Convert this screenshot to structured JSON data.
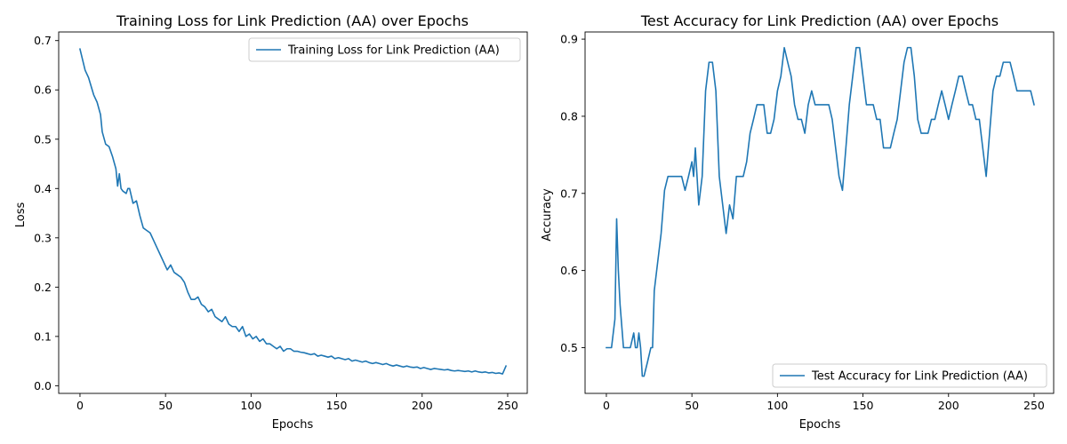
{
  "colors": {
    "series": "#1f77b4",
    "axes": "#000000",
    "background": "#ffffff",
    "legend_border": "#cccccc"
  },
  "chart_data": [
    {
      "type": "line",
      "title": "Training Loss for Link Prediction (AA) over Epochs",
      "xlabel": "Epochs",
      "ylabel": "Loss",
      "xlim": [
        -12.45,
        261.45
      ],
      "ylim": [
        -0.0155,
        0.7175
      ],
      "xticks": [
        0,
        50,
        100,
        150,
        200,
        250
      ],
      "yticks": [
        0.0,
        0.1,
        0.2,
        0.3,
        0.4,
        0.5,
        0.6,
        0.7
      ],
      "xtick_labels": [
        "0",
        "50",
        "100",
        "150",
        "200",
        "250"
      ],
      "ytick_labels": [
        "0.0",
        "0.1",
        "0.2",
        "0.3",
        "0.4",
        "0.5",
        "0.6",
        "0.7"
      ],
      "grid": false,
      "legend_position": "top-right",
      "series": [
        {
          "name": "Training Loss for Link Prediction (AA)",
          "x": [
            0,
            3,
            5,
            8,
            10,
            12,
            13,
            15,
            17,
            19,
            21,
            22,
            23,
            24,
            25,
            27,
            28,
            29,
            31,
            33,
            35,
            37,
            39,
            41,
            43,
            45,
            47,
            49,
            51,
            53,
            55,
            57,
            59,
            61,
            63,
            65,
            67,
            69,
            71,
            73,
            75,
            77,
            79,
            81,
            83,
            85,
            87,
            89,
            91,
            93,
            95,
            97,
            99,
            101,
            103,
            105,
            107,
            109,
            111,
            113,
            115,
            117,
            119,
            121,
            123,
            125,
            127,
            129,
            131,
            133,
            135,
            137,
            139,
            141,
            143,
            145,
            147,
            149,
            151,
            153,
            155,
            157,
            159,
            161,
            163,
            165,
            167,
            169,
            171,
            173,
            175,
            177,
            179,
            181,
            183,
            185,
            187,
            189,
            191,
            193,
            195,
            197,
            199,
            201,
            203,
            205,
            207,
            209,
            211,
            213,
            215,
            217,
            219,
            221,
            223,
            225,
            227,
            229,
            231,
            233,
            235,
            237,
            239,
            241,
            243,
            245,
            247,
            249
          ],
          "y": [
            0.683,
            0.64,
            0.625,
            0.59,
            0.575,
            0.55,
            0.515,
            0.49,
            0.485,
            0.465,
            0.44,
            0.405,
            0.43,
            0.4,
            0.395,
            0.39,
            0.4,
            0.4,
            0.37,
            0.375,
            0.345,
            0.32,
            0.315,
            0.31,
            0.295,
            0.28,
            0.265,
            0.25,
            0.235,
            0.245,
            0.23,
            0.225,
            0.22,
            0.21,
            0.19,
            0.175,
            0.175,
            0.18,
            0.165,
            0.16,
            0.15,
            0.155,
            0.14,
            0.135,
            0.13,
            0.14,
            0.125,
            0.12,
            0.12,
            0.11,
            0.12,
            0.1,
            0.105,
            0.095,
            0.1,
            0.09,
            0.095,
            0.085,
            0.085,
            0.08,
            0.075,
            0.08,
            0.07,
            0.075,
            0.075,
            0.07,
            0.07,
            0.068,
            0.067,
            0.065,
            0.063,
            0.065,
            0.06,
            0.062,
            0.06,
            0.058,
            0.06,
            0.055,
            0.057,
            0.055,
            0.053,
            0.055,
            0.05,
            0.052,
            0.05,
            0.048,
            0.05,
            0.047,
            0.045,
            0.047,
            0.045,
            0.043,
            0.045,
            0.042,
            0.04,
            0.042,
            0.04,
            0.038,
            0.04,
            0.038,
            0.037,
            0.038,
            0.035,
            0.037,
            0.035,
            0.033,
            0.035,
            0.034,
            0.033,
            0.032,
            0.033,
            0.031,
            0.03,
            0.031,
            0.03,
            0.029,
            0.03,
            0.028,
            0.03,
            0.028,
            0.027,
            0.028,
            0.026,
            0.027,
            0.025,
            0.026,
            0.024,
            0.04
          ]
        }
      ]
    },
    {
      "type": "line",
      "title": "Test Accuracy for Link Prediction (AA) over Epochs",
      "xlabel": "Epochs",
      "ylabel": "Accuracy",
      "xlim": [
        -12.45,
        261.45
      ],
      "ylim": [
        0.4407,
        0.9093
      ],
      "xticks": [
        0,
        50,
        100,
        150,
        200,
        250
      ],
      "yticks": [
        0.5,
        0.6,
        0.7,
        0.8,
        0.9
      ],
      "xtick_labels": [
        "0",
        "50",
        "100",
        "150",
        "200",
        "250"
      ],
      "ytick_labels": [
        "0.5",
        "0.6",
        "0.7",
        "0.8",
        "0.9"
      ],
      "grid": false,
      "legend_position": "lower-right",
      "series": [
        {
          "name": "Test Accuracy for Link Prediction (AA)",
          "x": [
            0,
            3,
            5,
            6,
            7,
            8,
            10,
            12,
            14,
            16,
            17,
            18,
            19,
            20,
            21,
            22,
            24,
            26,
            27,
            28,
            30,
            32,
            34,
            36,
            38,
            40,
            42,
            44,
            46,
            48,
            50,
            51,
            52,
            53,
            54,
            56,
            58,
            60,
            62,
            64,
            66,
            68,
            70,
            72,
            74,
            76,
            78,
            80,
            82,
            84,
            86,
            88,
            90,
            92,
            94,
            96,
            98,
            100,
            102,
            104,
            106,
            108,
            110,
            112,
            114,
            116,
            118,
            120,
            122,
            124,
            126,
            128,
            130,
            132,
            134,
            136,
            138,
            140,
            142,
            144,
            146,
            148,
            150,
            152,
            154,
            156,
            158,
            160,
            162,
            164,
            166,
            168,
            170,
            172,
            174,
            176,
            178,
            180,
            182,
            184,
            186,
            188,
            190,
            192,
            194,
            196,
            198,
            200,
            202,
            204,
            206,
            208,
            210,
            212,
            214,
            216,
            218,
            220,
            222,
            224,
            226,
            228,
            230,
            232,
            234,
            236,
            238,
            240,
            242,
            244,
            246,
            248,
            250
          ],
          "y": [
            0.5,
            0.5,
            0.537,
            0.667,
            0.6,
            0.556,
            0.5,
            0.5,
            0.5,
            0.519,
            0.5,
            0.5,
            0.519,
            0.5,
            0.463,
            0.463,
            0.481,
            0.5,
            0.5,
            0.574,
            0.611,
            0.648,
            0.704,
            0.722,
            0.722,
            0.722,
            0.722,
            0.722,
            0.704,
            0.722,
            0.741,
            0.722,
            0.759,
            0.722,
            0.685,
            0.722,
            0.833,
            0.87,
            0.87,
            0.833,
            0.722,
            0.685,
            0.648,
            0.685,
            0.667,
            0.722,
            0.722,
            0.722,
            0.741,
            0.778,
            0.796,
            0.815,
            0.815,
            0.815,
            0.778,
            0.778,
            0.796,
            0.833,
            0.852,
            0.889,
            0.87,
            0.852,
            0.815,
            0.796,
            0.796,
            0.778,
            0.815,
            0.833,
            0.815,
            0.815,
            0.815,
            0.815,
            0.815,
            0.796,
            0.759,
            0.722,
            0.704,
            0.759,
            0.815,
            0.852,
            0.889,
            0.889,
            0.852,
            0.815,
            0.815,
            0.815,
            0.796,
            0.796,
            0.759,
            0.759,
            0.759,
            0.778,
            0.796,
            0.833,
            0.87,
            0.889,
            0.889,
            0.852,
            0.796,
            0.778,
            0.778,
            0.778,
            0.796,
            0.796,
            0.815,
            0.833,
            0.815,
            0.796,
            0.815,
            0.833,
            0.852,
            0.852,
            0.833,
            0.815,
            0.815,
            0.796,
            0.796,
            0.759,
            0.722,
            0.778,
            0.833,
            0.852,
            0.852,
            0.87,
            0.87,
            0.87,
            0.852,
            0.833,
            0.833,
            0.833,
            0.833,
            0.833,
            0.815
          ]
        }
      ]
    }
  ]
}
